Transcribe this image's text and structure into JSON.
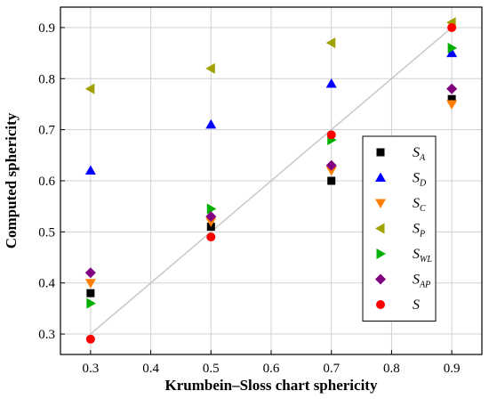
{
  "chart_data": {
    "type": "scatter",
    "xlabel": "Krumbein–Sloss chart sphericity",
    "ylabel": "Computed sphericity",
    "xlim": [
      0.25,
      0.95
    ],
    "ylim": [
      0.26,
      0.94
    ],
    "xticks": [
      "0.3",
      "0.4",
      "0.5",
      "0.6",
      "0.7",
      "0.8",
      "0.9"
    ],
    "yticks": [
      "0.3",
      "0.4",
      "0.5",
      "0.6",
      "0.7",
      "0.8",
      "0.9"
    ],
    "grid": true,
    "legend_position": "right",
    "reference_line": {
      "from": [
        0.3,
        0.3
      ],
      "to": [
        0.9,
        0.9
      ],
      "color": "#c8c8c8"
    },
    "series": [
      {
        "name": "S",
        "sub": "A",
        "marker": "square",
        "color": "#000000",
        "x": [
          0.3,
          0.5,
          0.7,
          0.9
        ],
        "y": [
          0.38,
          0.51,
          0.6,
          0.76
        ]
      },
      {
        "name": "S",
        "sub": "D",
        "marker": "triangle-up",
        "color": "#0000ff",
        "x": [
          0.3,
          0.5,
          0.7,
          0.9
        ],
        "y": [
          0.62,
          0.71,
          0.79,
          0.85
        ]
      },
      {
        "name": "S",
        "sub": "C",
        "marker": "triangle-down",
        "color": "#ff8000",
        "x": [
          0.3,
          0.5,
          0.7,
          0.9
        ],
        "y": [
          0.4,
          0.52,
          0.62,
          0.75
        ]
      },
      {
        "name": "S",
        "sub": "P",
        "marker": "triangle-left",
        "color": "#a0a000",
        "x": [
          0.3,
          0.5,
          0.7,
          0.9
        ],
        "y": [
          0.78,
          0.82,
          0.87,
          0.91
        ]
      },
      {
        "name": "S",
        "sub": "WL",
        "marker": "triangle-right",
        "color": "#00b000",
        "x": [
          0.3,
          0.5,
          0.7,
          0.9
        ],
        "y": [
          0.36,
          0.545,
          0.68,
          0.86
        ]
      },
      {
        "name": "S",
        "sub": "AP",
        "marker": "diamond",
        "color": "#800080",
        "x": [
          0.3,
          0.5,
          0.7,
          0.9
        ],
        "y": [
          0.42,
          0.53,
          0.63,
          0.78
        ]
      },
      {
        "name": "S",
        "sub": "",
        "marker": "circle",
        "color": "#ff0000",
        "x": [
          0.3,
          0.5,
          0.7,
          0.9
        ],
        "y": [
          0.29,
          0.49,
          0.69,
          0.9
        ]
      }
    ]
  }
}
